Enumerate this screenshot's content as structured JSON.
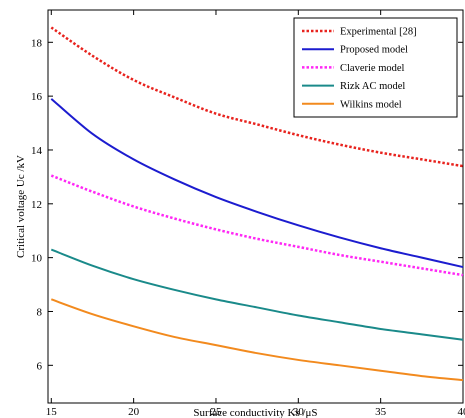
{
  "chart_data": {
    "type": "line",
    "title": "",
    "xlabel": "Surface conductivity Ks /μS",
    "ylabel": "Critical voltage Uc /kV",
    "xlim": [
      14.8,
      40
    ],
    "ylim": [
      4.6,
      19.2
    ],
    "xticks": [
      15,
      20,
      25,
      30,
      35,
      40
    ],
    "yticks": [
      6,
      8,
      10,
      12,
      14,
      16,
      18
    ],
    "grid": false,
    "legend_position": "top-right",
    "x": [
      15,
      17.5,
      20,
      22.5,
      25,
      27.5,
      30,
      32.5,
      35,
      37.5,
      40
    ],
    "series": [
      {
        "name": "Experimental [28]",
        "color": "#e8231e",
        "dash": "dotted",
        "values": [
          18.55,
          17.5,
          16.6,
          15.95,
          15.35,
          14.95,
          14.55,
          14.2,
          13.9,
          13.65,
          13.4
        ]
      },
      {
        "name": "Proposed model",
        "color": "#1c1ccf",
        "dash": "solid",
        "values": [
          15.9,
          14.6,
          13.65,
          12.9,
          12.25,
          11.7,
          11.2,
          10.75,
          10.35,
          10.0,
          9.65
        ]
      },
      {
        "name": "Claverie model",
        "color": "#ff27f5",
        "dash": "dotted",
        "values": [
          13.05,
          12.45,
          11.9,
          11.45,
          11.05,
          10.7,
          10.4,
          10.1,
          9.85,
          9.6,
          9.35
        ]
      },
      {
        "name": "Rizk AC model",
        "color": "#1a8a8a",
        "dash": "solid",
        "values": [
          10.3,
          9.7,
          9.2,
          8.8,
          8.45,
          8.15,
          7.85,
          7.6,
          7.35,
          7.15,
          6.95
        ]
      },
      {
        "name": "Wilkins model",
        "color": "#f28a1e",
        "dash": "solid",
        "values": [
          8.45,
          7.9,
          7.45,
          7.05,
          6.75,
          6.45,
          6.2,
          6.0,
          5.8,
          5.6,
          5.45
        ]
      }
    ]
  }
}
